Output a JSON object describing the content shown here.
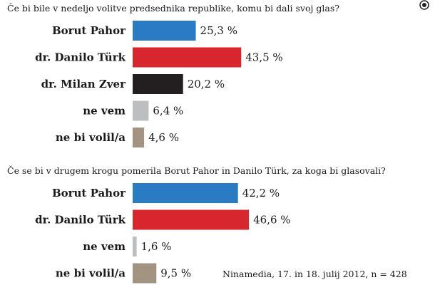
{
  "corner_icon": "bullseye-icon",
  "questions": [
    "Če bi bile v nedeljo volitve predsednika republike, komu bi dali svoj glas?",
    "Če se bi v drugem krogu pomerila Borut Pahor in Danilo Türk, za koga bi glasovali?"
  ],
  "source": "Ninamedia, 17. in 18. julij 2012, n = 428",
  "chart_data": [
    {
      "type": "bar",
      "orientation": "horizontal",
      "title": "Če bi bile v nedeljo volitve predsednika republike, komu bi dali svoj glas?",
      "categories": [
        "Borut Pahor",
        "dr. Danilo Türk",
        "dr. Milan Zver",
        "ne vem",
        "ne bi volil/a"
      ],
      "values": [
        25.3,
        43.5,
        20.2,
        6.4,
        4.6
      ],
      "value_labels": [
        "25,3 %",
        "43,5 %",
        "20,2 %",
        "6,4 %",
        "4,6 %"
      ],
      "colors": [
        "#2a7bc4",
        "#d8262e",
        "#231f20",
        "#bcbec0",
        "#a39482"
      ],
      "unit": "%",
      "grid": false,
      "legend": "none"
    },
    {
      "type": "bar",
      "orientation": "horizontal",
      "title": "Če se bi v drugem krogu pomerila Borut Pahor in Danilo Türk, za koga bi glasovali?",
      "categories": [
        "Borut Pahor",
        "dr. Danilo Türk",
        "ne vem",
        "ne bi volil/a"
      ],
      "values": [
        42.2,
        46.6,
        1.6,
        9.5
      ],
      "value_labels": [
        "42,2 %",
        "46,6 %",
        "1,6 %",
        "9,5 %"
      ],
      "colors": [
        "#2a7bc4",
        "#d8262e",
        "#bcbec0",
        "#a39482"
      ],
      "unit": "%",
      "grid": false,
      "legend": "none"
    }
  ]
}
